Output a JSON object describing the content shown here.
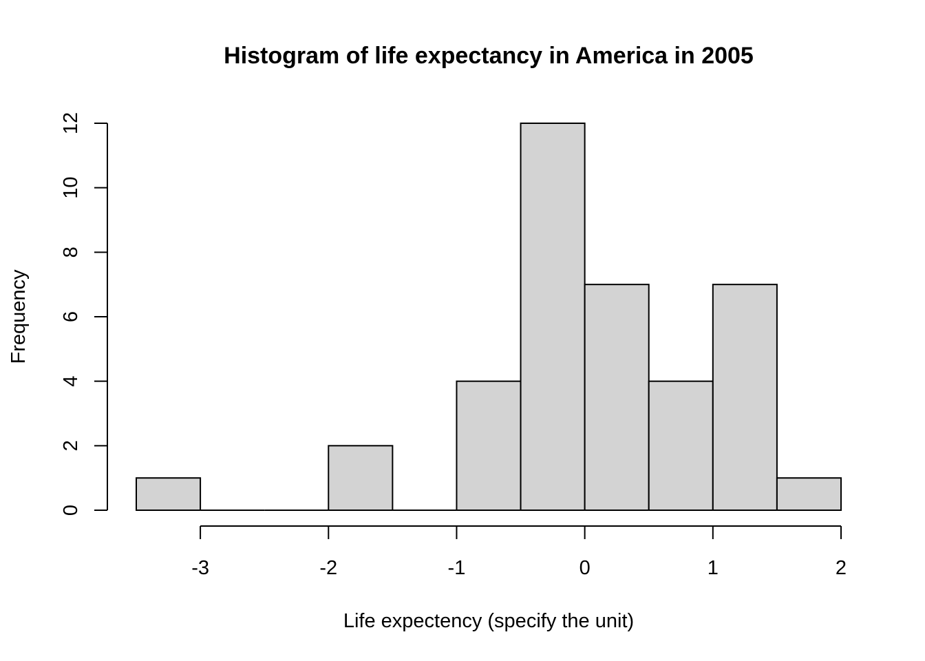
{
  "chart_data": {
    "type": "bar",
    "subtype": "histogram",
    "title": "Histogram of life expectancy in America in 2005",
    "xlabel": "Life expectency (specify the unit)",
    "ylabel": "Frequency",
    "bin_width": 0.5,
    "bins": [
      {
        "x0": -3.5,
        "x1": -3.0,
        "count": 1
      },
      {
        "x0": -3.0,
        "x1": -2.5,
        "count": 0
      },
      {
        "x0": -2.5,
        "x1": -2.0,
        "count": 0
      },
      {
        "x0": -2.0,
        "x1": -1.5,
        "count": 2
      },
      {
        "x0": -1.5,
        "x1": -1.0,
        "count": 0
      },
      {
        "x0": -1.0,
        "x1": -0.5,
        "count": 4
      },
      {
        "x0": -0.5,
        "x1": 0.0,
        "count": 12
      },
      {
        "x0": 0.0,
        "x1": 0.5,
        "count": 7
      },
      {
        "x0": 0.5,
        "x1": 1.0,
        "count": 4
      },
      {
        "x0": 1.0,
        "x1": 1.5,
        "count": 7
      },
      {
        "x0": 1.5,
        "x1": 2.0,
        "count": 1
      }
    ],
    "xticks": [
      -3,
      -2,
      -1,
      0,
      1,
      2
    ],
    "xtick_labels": [
      "-3",
      "-2",
      "-1",
      "0",
      "1",
      "2"
    ],
    "yticks": [
      0,
      2,
      4,
      6,
      8,
      10,
      12
    ],
    "ytick_labels": [
      "0",
      "2",
      "4",
      "6",
      "8",
      "10",
      "12"
    ],
    "xlim": [
      -3.5,
      2
    ],
    "ylim": [
      0,
      12
    ],
    "grid": false,
    "bar_color": "#d3d3d3",
    "edge_color": "#000000"
  }
}
